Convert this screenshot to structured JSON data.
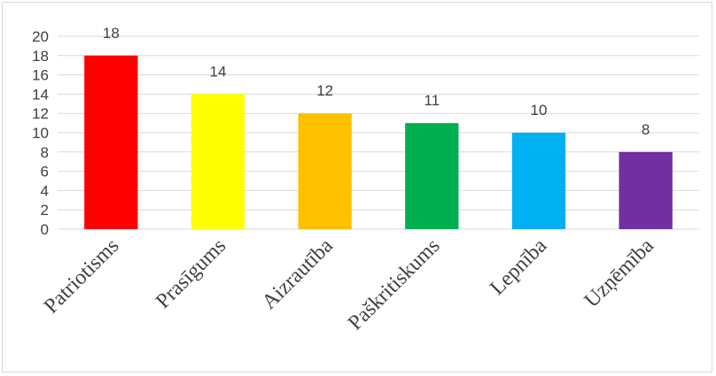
{
  "chart_data": {
    "type": "bar",
    "categories": [
      "Patriotisms",
      "Prasīgums",
      "Aizrautība",
      "Paškritiskums",
      "Lepnība",
      "Uzņēmība"
    ],
    "values": [
      18,
      14,
      12,
      11,
      10,
      8
    ],
    "colors": [
      "#ff0000",
      "#ffff00",
      "#ffc000",
      "#00b050",
      "#00b0f0",
      "#7030a0"
    ],
    "ylim": [
      0,
      20
    ],
    "yticks": [
      0,
      2,
      4,
      6,
      8,
      10,
      12,
      14,
      16,
      18,
      20
    ],
    "grid": true,
    "data_labels": true,
    "title": "",
    "xlabel": "",
    "ylabel": ""
  }
}
